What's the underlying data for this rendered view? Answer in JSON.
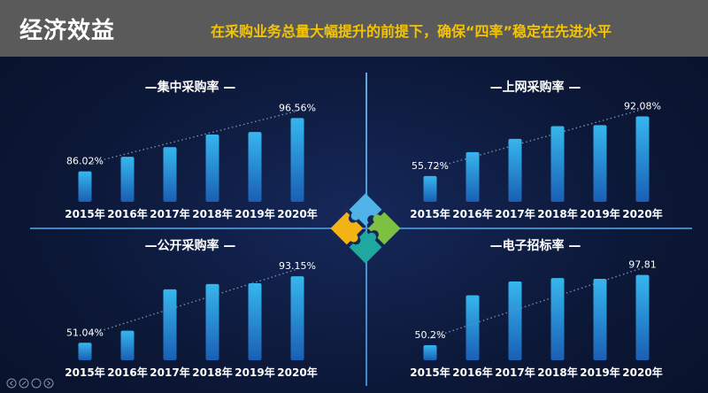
{
  "header": {
    "title": "经济效益",
    "subtitle": "在采购业务总量大幅提升的前提下，确保“四率”稳定在先进水平"
  },
  "colors": {
    "header_bg": "#5a5a5a",
    "accent_yellow": "#f5c400",
    "bar_top": "#36b6ee",
    "bar_bottom": "#1a5fb4",
    "divider": "#3d86c8"
  },
  "chart_data": [
    {
      "type": "bar",
      "title": "—集中采购率 —",
      "categories": [
        "2015年",
        "2016年",
        "2017年",
        "2018年",
        "2019年",
        "2020年"
      ],
      "values": [
        86.02,
        88.9,
        90.8,
        93.3,
        93.8,
        96.56
      ],
      "data_labels": {
        "0": "86.02%",
        "5": "96.56%"
      },
      "trendline": true,
      "ylim": [
        80,
        97.5
      ]
    },
    {
      "type": "bar",
      "title": "—上网采购率 —",
      "categories": [
        "2015年",
        "2016年",
        "2017年",
        "2018年",
        "2019年",
        "2020年"
      ],
      "values": [
        55.72,
        70.3,
        78.4,
        86.2,
        86.8,
        92.08
      ],
      "data_labels": {
        "0": "55.72%",
        "5": "92.08%"
      },
      "trendline": true,
      "ylim": [
        40,
        94
      ]
    },
    {
      "type": "bar",
      "title": "—公开采购率 —",
      "categories": [
        "2015年",
        "2016年",
        "2017年",
        "2018年",
        "2019年",
        "2020年"
      ],
      "values": [
        51.04,
        58.7,
        84.9,
        88.2,
        88.7,
        93.15
      ],
      "data_labels": {
        "0": "51.04%",
        "5": "93.15%"
      },
      "trendline": true,
      "ylim": [
        40,
        96
      ]
    },
    {
      "type": "bar",
      "title": "—电子招标率 —",
      "categories": [
        "2015年",
        "2016年",
        "2017年",
        "2018年",
        "2019年",
        "2020年"
      ],
      "values": [
        50.2,
        84.0,
        93.4,
        95.7,
        95.2,
        97.81
      ],
      "data_labels": {
        "0": "50.2%",
        "5": "97.81"
      },
      "trendline": true,
      "ylim": [
        40,
        100
      ]
    }
  ]
}
